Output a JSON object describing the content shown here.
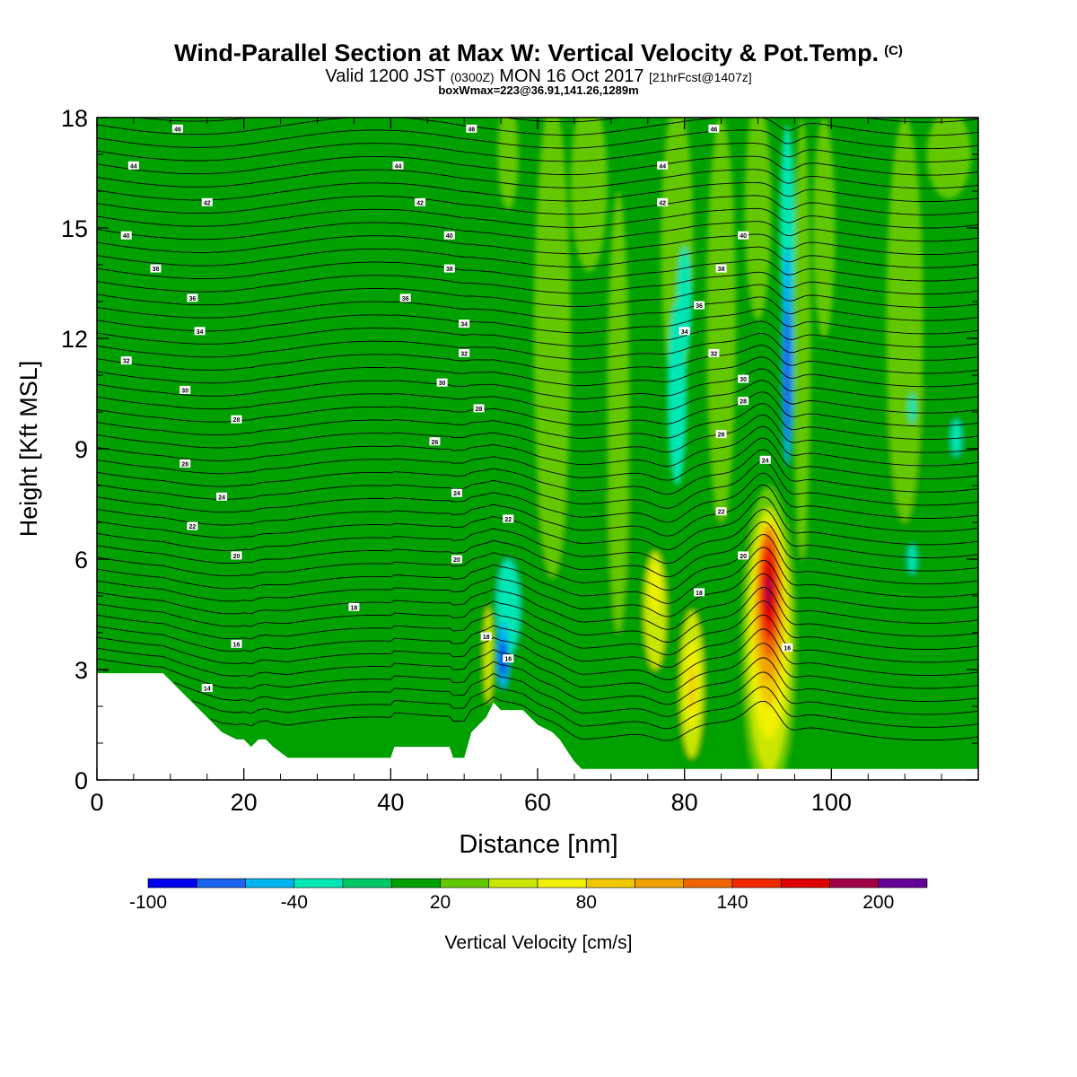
{
  "title": "Wind-Parallel Section at Max W: Vertical Velocity & Pot.Temp.",
  "title_mark": "(C)",
  "subtitle": {
    "valid": "Valid 1200 JST",
    "zulu": "(0300Z)",
    "date": "MON 16 Oct 2017",
    "forecast": "[21hrFcst@1407z]"
  },
  "box_info": "boxWmax=223@36.91,141.26,1289m",
  "chart_data": {
    "type": "heatmap",
    "xlabel": "Distance [nm]",
    "ylabel": "Height [Kft MSL]",
    "xlim": [
      0,
      120
    ],
    "ylim": [
      0,
      18
    ],
    "x_ticks": [
      0,
      20,
      40,
      60,
      80,
      100
    ],
    "y_ticks": [
      0,
      3,
      6,
      9,
      12,
      15,
      18
    ],
    "colorbar": {
      "label": "Vertical Velocity [cm/s]",
      "tick_labels": [
        -100,
        -40,
        20,
        80,
        140,
        200
      ],
      "levels": [
        -100,
        -80,
        -60,
        -40,
        -20,
        0,
        20,
        40,
        60,
        80,
        100,
        120,
        140,
        160,
        180,
        200,
        220
      ],
      "colors": [
        "#0000f0",
        "#1a64f0",
        "#00b4f0",
        "#00e6b4",
        "#00c864",
        "#00a000",
        "#64c800",
        "#c8e600",
        "#f0f000",
        "#f0c800",
        "#f0a000",
        "#f06400",
        "#f02800",
        "#dc0000",
        "#a00046",
        "#640096"
      ]
    },
    "terrain_profile_kft": [
      [
        0,
        2.9
      ],
      [
        9,
        2.9
      ],
      [
        11,
        2.5
      ],
      [
        13,
        2.1
      ],
      [
        15,
        1.7
      ],
      [
        17,
        1.3
      ],
      [
        19,
        1.1
      ],
      [
        20,
        1.1
      ],
      [
        21,
        0.9
      ],
      [
        22,
        1.1
      ],
      [
        23,
        1.1
      ],
      [
        24,
        0.9
      ],
      [
        26,
        0.6
      ],
      [
        40,
        0.6
      ],
      [
        40.5,
        0.9
      ],
      [
        48,
        0.9
      ],
      [
        48.5,
        0.6
      ],
      [
        50,
        0.6
      ],
      [
        51,
        1.3
      ],
      [
        53,
        1.7
      ],
      [
        54,
        2.1
      ],
      [
        55,
        1.9
      ],
      [
        58,
        1.9
      ],
      [
        60,
        1.5
      ],
      [
        62,
        1.3
      ],
      [
        63,
        1.1
      ],
      [
        64,
        0.8
      ],
      [
        65,
        0.5
      ],
      [
        66,
        0.3
      ],
      [
        120,
        0.3
      ]
    ],
    "theta_contour_labels": [
      {
        "x": 11,
        "y": 17.7,
        "v": "46"
      },
      {
        "x": 51,
        "y": 17.7,
        "v": "46"
      },
      {
        "x": 84,
        "y": 17.7,
        "v": "46"
      },
      {
        "x": 5,
        "y": 16.7,
        "v": "44"
      },
      {
        "x": 41,
        "y": 16.7,
        "v": "44"
      },
      {
        "x": 77,
        "y": 16.7,
        "v": "44"
      },
      {
        "x": 15,
        "y": 15.7,
        "v": "42"
      },
      {
        "x": 44,
        "y": 15.7,
        "v": "42"
      },
      {
        "x": 77,
        "y": 15.7,
        "v": "42"
      },
      {
        "x": 4,
        "y": 14.8,
        "v": "40"
      },
      {
        "x": 48,
        "y": 14.8,
        "v": "40"
      },
      {
        "x": 88,
        "y": 14.8,
        "v": "40"
      },
      {
        "x": 8,
        "y": 13.9,
        "v": "38"
      },
      {
        "x": 48,
        "y": 13.9,
        "v": "38"
      },
      {
        "x": 85,
        "y": 13.9,
        "v": "38"
      },
      {
        "x": 13,
        "y": 13.1,
        "v": "36"
      },
      {
        "x": 42,
        "y": 13.1,
        "v": "36"
      },
      {
        "x": 82,
        "y": 12.9,
        "v": "36"
      },
      {
        "x": 14,
        "y": 12.2,
        "v": "34"
      },
      {
        "x": 50,
        "y": 12.4,
        "v": "34"
      },
      {
        "x": 80,
        "y": 12.2,
        "v": "34"
      },
      {
        "x": 4,
        "y": 11.4,
        "v": "32"
      },
      {
        "x": 50,
        "y": 11.6,
        "v": "32"
      },
      {
        "x": 84,
        "y": 11.6,
        "v": "32"
      },
      {
        "x": 12,
        "y": 10.6,
        "v": "30"
      },
      {
        "x": 47,
        "y": 10.8,
        "v": "30"
      },
      {
        "x": 88,
        "y": 10.9,
        "v": "30"
      },
      {
        "x": 19,
        "y": 9.8,
        "v": "28"
      },
      {
        "x": 52,
        "y": 10.1,
        "v": "28"
      },
      {
        "x": 88,
        "y": 10.3,
        "v": "28"
      },
      {
        "x": 12,
        "y": 8.6,
        "v": "26"
      },
      {
        "x": 46,
        "y": 9.2,
        "v": "26"
      },
      {
        "x": 85,
        "y": 9.4,
        "v": "26"
      },
      {
        "x": 17,
        "y": 7.7,
        "v": "24"
      },
      {
        "x": 49,
        "y": 7.8,
        "v": "24"
      },
      {
        "x": 91,
        "y": 8.7,
        "v": "24"
      },
      {
        "x": 13,
        "y": 6.9,
        "v": "22"
      },
      {
        "x": 56,
        "y": 7.1,
        "v": "22"
      },
      {
        "x": 85,
        "y": 7.3,
        "v": "22"
      },
      {
        "x": 19,
        "y": 6.1,
        "v": "20"
      },
      {
        "x": 49,
        "y": 6.0,
        "v": "20"
      },
      {
        "x": 88,
        "y": 6.1,
        "v": "20"
      },
      {
        "x": 35,
        "y": 4.7,
        "v": "18"
      },
      {
        "x": 53,
        "y": 3.9,
        "v": "18"
      },
      {
        "x": 82,
        "y": 5.1,
        "v": "18"
      },
      {
        "x": 19,
        "y": 3.7,
        "v": "16"
      },
      {
        "x": 56,
        "y": 3.3,
        "v": "16"
      },
      {
        "x": 94,
        "y": 3.6,
        "v": "16"
      },
      {
        "x": 15,
        "y": 2.5,
        "v": "14"
      }
    ]
  }
}
